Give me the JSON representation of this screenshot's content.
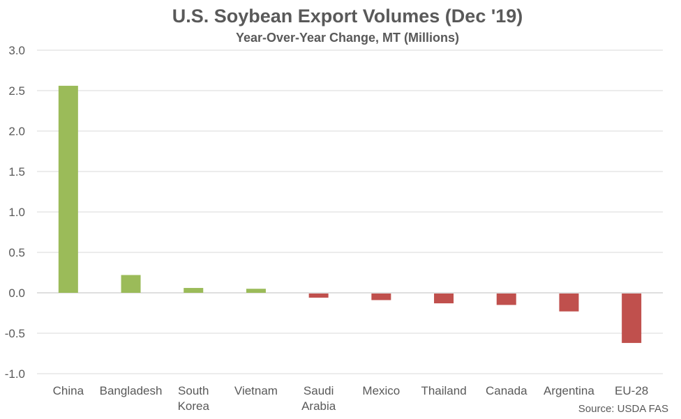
{
  "chart_data": {
    "type": "bar",
    "title": "U.S. Soybean Export Volumes (Dec '19)",
    "subtitle": "Year-Over-Year Change, MT (Millions)",
    "categories": [
      [
        "China"
      ],
      [
        "Bangladesh"
      ],
      [
        "South",
        "Korea"
      ],
      [
        "Vietnam"
      ],
      [
        "Saudi",
        "Arabia"
      ],
      [
        "Mexico"
      ],
      [
        "Thailand"
      ],
      [
        "Canada"
      ],
      [
        "Argentina"
      ],
      [
        "EU-28"
      ]
    ],
    "values": [
      2.56,
      0.22,
      0.06,
      0.05,
      -0.06,
      -0.09,
      -0.13,
      -0.15,
      -0.23,
      -0.62
    ],
    "ylim": [
      -1.0,
      3.0
    ],
    "yticks": [
      "3.0",
      "2.5",
      "2.0",
      "1.5",
      "1.0",
      "0.5",
      "0.0",
      "-0.5",
      "-1.0"
    ],
    "ytick_values": [
      3.0,
      2.5,
      2.0,
      1.5,
      1.0,
      0.5,
      0.0,
      -0.5,
      -1.0
    ],
    "xlabel": "",
    "ylabel": "",
    "grid": true,
    "colors": {
      "positive": "#9bbb59",
      "negative": "#c0504d"
    },
    "source": "Source: USDA FAS"
  }
}
